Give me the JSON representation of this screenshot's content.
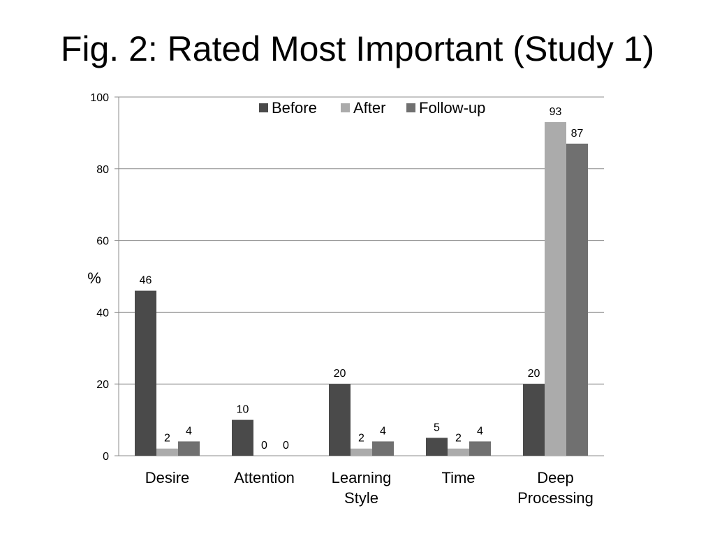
{
  "title": "Fig. 2: Rated Most Important (Study 1)",
  "chart_data": {
    "type": "bar",
    "title": "Fig. 2: Rated Most Important (Study 1)",
    "ylabel": "%",
    "ylim": [
      0,
      100
    ],
    "yticks": [
      0,
      20,
      40,
      60,
      80,
      100
    ],
    "grid": true,
    "legend_position": "top",
    "categories": [
      [
        "Desire"
      ],
      [
        "Attention"
      ],
      [
        "Learning",
        "Style"
      ],
      [
        "Time"
      ],
      [
        "Deep",
        "Processing"
      ]
    ],
    "series": [
      {
        "name": "Before",
        "color": "#4a4a4a",
        "values": [
          46,
          10,
          20,
          5,
          20
        ]
      },
      {
        "name": "After",
        "color": "#ababab",
        "values": [
          2,
          0,
          2,
          2,
          93
        ]
      },
      {
        "name": "Follow-up",
        "color": "#707070",
        "values": [
          4,
          0,
          4,
          4,
          87
        ]
      }
    ]
  }
}
